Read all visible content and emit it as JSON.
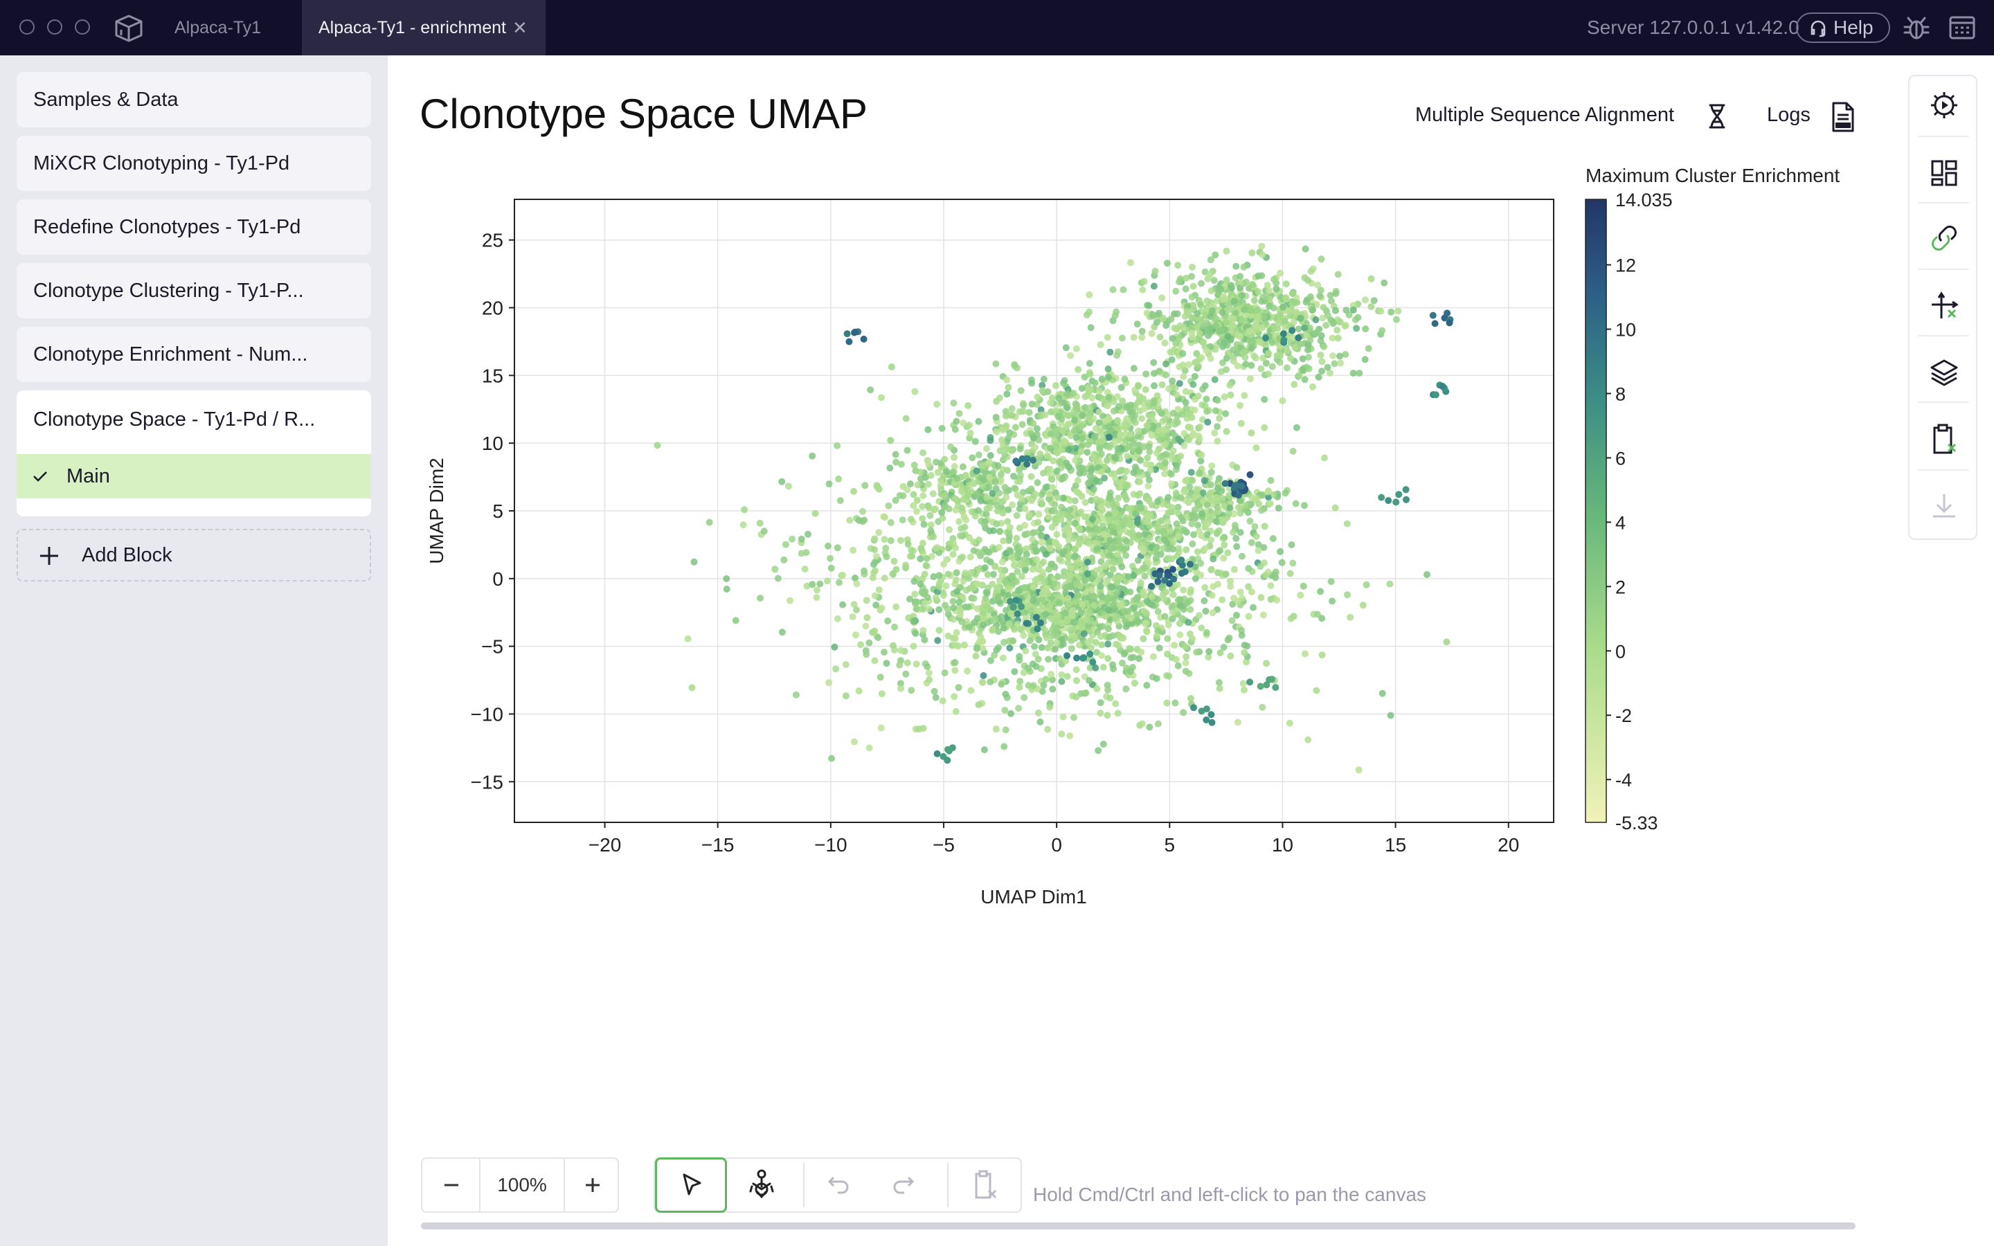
{
  "titlebar": {
    "tabs": [
      {
        "label": "Alpaca-Ty1"
      },
      {
        "label": "Alpaca-Ty1 - enrichment"
      }
    ],
    "server_label": "Server 127.0.0.1 v1.42.0",
    "help_label": "Help"
  },
  "sidebar": {
    "blocks": [
      {
        "label": "Samples & Data"
      },
      {
        "label": "MiXCR Clonotyping - Ty1-Pd"
      },
      {
        "label": "Redefine Clonotypes - Ty1-Pd"
      },
      {
        "label": "Clonotype Clustering - Ty1-P..."
      },
      {
        "label": "Clonotype Enrichment - Num..."
      },
      {
        "label": "Clonotype Space - Ty1-Pd / R..."
      }
    ],
    "sub_item": "Main",
    "add_block": "Add Block"
  },
  "main": {
    "title": "Clonotype Space UMAP",
    "msa_label": "Multiple Sequence Alignment",
    "logs_label": "Logs"
  },
  "toolbar": {
    "zoom": "100%",
    "hint": "Hold Cmd/Ctrl and left-click to pan the canvas"
  },
  "colors": {
    "titlebar": "#110f2a",
    "accent_green": "#d7f1c3",
    "select_border": "#5cb85c"
  },
  "chart_data": {
    "type": "scatter",
    "xlabel": "UMAP Dim1",
    "ylabel": "UMAP Dim2",
    "xlim": [
      -24,
      22
    ],
    "ylim": [
      -18,
      28
    ],
    "xticks": [
      -20,
      -15,
      -10,
      -5,
      0,
      5,
      10,
      15,
      20
    ],
    "yticks": [
      -15,
      -10,
      -5,
      0,
      5,
      10,
      15,
      20,
      25
    ],
    "grid": true,
    "colorbar": {
      "title": "Maximum Cluster Enrichment",
      "min": -5.33,
      "max": 14.035,
      "min_label": "-5.33",
      "max_label": "14.035",
      "ticks": [
        12,
        10,
        8,
        6,
        4,
        2,
        0,
        -2,
        -4
      ],
      "colors": [
        "#f1f2b8",
        "#a9dc8b",
        "#64b67a",
        "#3b8e85",
        "#2c5f86",
        "#223667"
      ]
    },
    "clusters": [
      {
        "x": 8.5,
        "y": 19,
        "sx": 4.5,
        "sy": 3.5,
        "n": 700
      },
      {
        "x": 2,
        "y": 11,
        "sx": 5,
        "sy": 4,
        "n": 700
      },
      {
        "x": 0.5,
        "y": -2,
        "sx": 4,
        "sy": 2,
        "n": 450
      },
      {
        "x": 3,
        "y": 4,
        "sx": 4,
        "sy": 3,
        "n": 350
      },
      {
        "x": -4,
        "y": 7,
        "sx": 2.5,
        "sy": 2,
        "n": 150
      },
      {
        "x": 7.5,
        "y": 6,
        "sx": 2,
        "sy": 1.5,
        "n": 120
      },
      {
        "x": 0,
        "y": 0,
        "sx": 9.5,
        "sy": 8.5,
        "n": 1500
      }
    ],
    "highlights": [
      {
        "x": 7.9,
        "y": 7,
        "v": 13
      },
      {
        "x": 8.3,
        "y": 6.5,
        "v": 12
      },
      {
        "x": 7.7,
        "y": 6.7,
        "v": 11
      },
      {
        "x": 5,
        "y": 0.4,
        "v": 12
      },
      {
        "x": 4.5,
        "y": 0,
        "v": 11
      },
      {
        "x": 5.5,
        "y": 0.8,
        "v": 10
      },
      {
        "x": -1,
        "y": -3,
        "v": 9
      },
      {
        "x": -2,
        "y": -2,
        "v": 8
      },
      {
        "x": 17,
        "y": 19,
        "v": 11
      },
      {
        "x": 17,
        "y": 14,
        "v": 9
      },
      {
        "x": -9,
        "y": 18,
        "v": 11
      },
      {
        "x": 1,
        "y": -6,
        "v": 9
      },
      {
        "x": 6.5,
        "y": -10,
        "v": 8
      },
      {
        "x": -5,
        "y": -13,
        "v": 8
      },
      {
        "x": 9,
        "y": -8,
        "v": 7
      },
      {
        "x": -1.5,
        "y": 8.5,
        "v": 10
      },
      {
        "x": 10,
        "y": 18,
        "v": 9
      },
      {
        "x": 15,
        "y": 6,
        "v": 8
      }
    ]
  }
}
